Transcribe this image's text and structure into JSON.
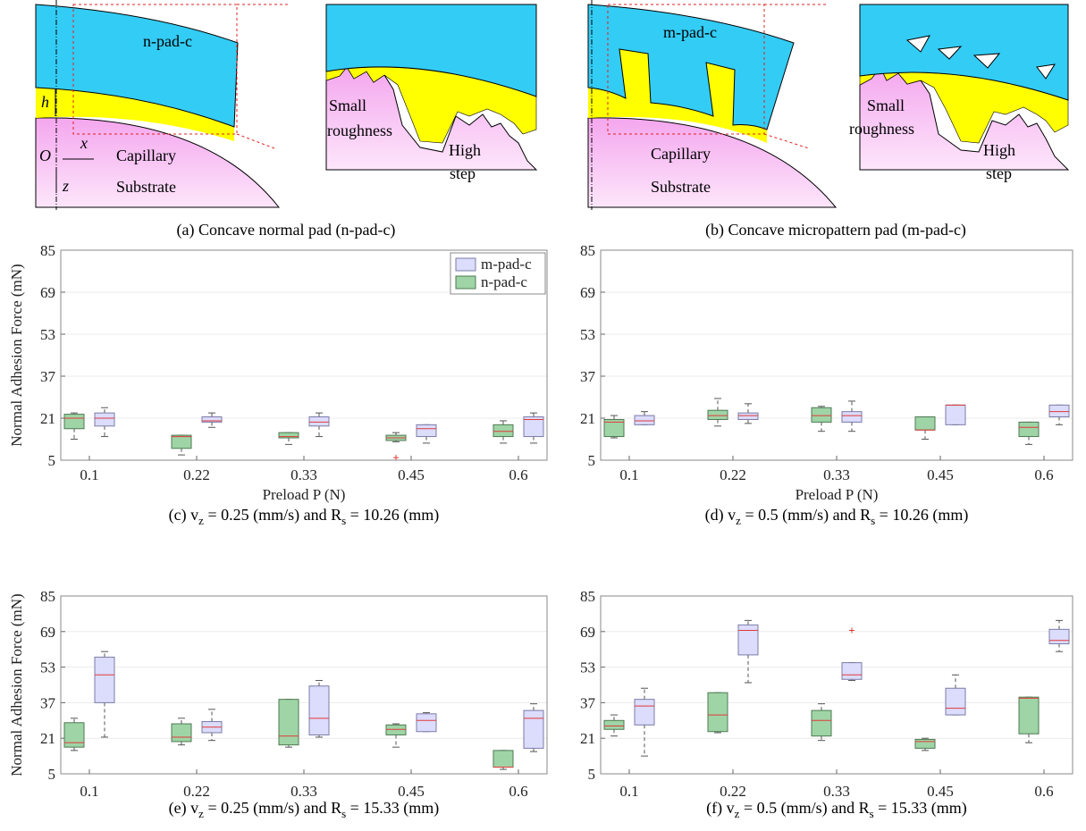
{
  "diagrams": {
    "a": {
      "pad": "n-pad-c",
      "h": "h",
      "origin": "O",
      "x": "x",
      "z": "z",
      "capillary": "Capillary",
      "substrate": "Substrate",
      "small": "Small",
      "roughness": "roughness",
      "high": "High",
      "step": "step",
      "caption": "(a) Concave normal pad (n-pad-c)"
    },
    "b": {
      "pad": "m-pad-c",
      "capillary": "Capillary",
      "substrate": "Substrate",
      "small": "Small",
      "roughness": "roughness",
      "high": "High",
      "step": "step",
      "caption": "(b) Concave micropattern pad  (m-pad-c)"
    }
  },
  "chart_data": [
    {
      "type": "box",
      "title": [
        "(c) v",
        "z",
        " = 0.25 (mm/s) and R",
        "s",
        " = 10.26 (mm)"
      ],
      "xlabel": "Preload P (N)",
      "ylabel": "Normal Adhesion Force (mN)",
      "categories": [
        "0.1",
        "0.22",
        "0.33",
        "0.45",
        "0.6"
      ],
      "ylim": [
        5,
        85
      ],
      "yticks": [
        5,
        21,
        37,
        53,
        69,
        85
      ],
      "grid": true,
      "legend": "upper right",
      "series": [
        {
          "name": "m-pad-c",
          "color": "#dcdcfc",
          "values": [
            {
              "whislo": 14,
              "q1": 18,
              "med": 21,
              "q3": 23,
              "whishi": 25
            },
            {
              "whislo": 17.5,
              "q1": 19.5,
              "med": 20,
              "q3": 21.5,
              "whishi": 23
            },
            {
              "whislo": 14,
              "q1": 18,
              "med": 19.5,
              "q3": 21.5,
              "whishi": 23
            },
            {
              "whislo": 11.5,
              "q1": 14,
              "med": 17,
              "q3": 18.5,
              "whishi": 18.5
            },
            {
              "whislo": 11.5,
              "q1": 14,
              "med": 20.5,
              "q3": 21.5,
              "whishi": 23
            }
          ]
        },
        {
          "name": "n-pad-c",
          "color": "#9fd4a6",
          "values": [
            {
              "whislo": 13,
              "q1": 17,
              "med": 21,
              "q3": 22.5,
              "whishi": 23
            },
            {
              "whislo": 7,
              "q1": 9.5,
              "med": 14,
              "q3": 14.5,
              "whishi": 14.5
            },
            {
              "whislo": 11,
              "q1": 13.5,
              "med": 14,
              "q3": 15.5,
              "whishi": 15.5
            },
            {
              "whislo": 12,
              "q1": 12.5,
              "med": 13.5,
              "q3": 14.5,
              "whishi": 15.5,
              "fliers": [
                6
              ]
            },
            {
              "whislo": 11.5,
              "q1": 14,
              "med": 16,
              "q3": 18.5,
              "whishi": 20
            }
          ]
        }
      ]
    },
    {
      "type": "box",
      "title": [
        "(d) v",
        "z",
        " = 0.5 (mm/s) and R",
        "s",
        " = 10.26 (mm)"
      ],
      "xlabel": "Preload P (N)",
      "categories": [
        "0.1",
        "0.22",
        "0.33",
        "0.45",
        "0.6"
      ],
      "ylim": [
        5,
        85
      ],
      "yticks": [
        5,
        21,
        37,
        53,
        69,
        85
      ],
      "grid": true,
      "series": [
        {
          "name": "m-pad-c",
          "color": "#dcdcfc",
          "values": [
            {
              "whislo": 18.5,
              "q1": 18.5,
              "med": 20,
              "q3": 22,
              "whishi": 23.5
            },
            {
              "whislo": 19,
              "q1": 20.5,
              "med": 22,
              "q3": 23,
              "whishi": 26.5
            },
            {
              "whislo": 16,
              "q1": 19.5,
              "med": 22,
              "q3": 23.5,
              "whishi": 27.5
            },
            {
              "whislo": 18.5,
              "q1": 18.5,
              "med": 26,
              "q3": 26,
              "whishi": 26
            },
            {
              "whislo": 18.5,
              "q1": 21.5,
              "med": 23.5,
              "q3": 26,
              "whishi": 26
            }
          ]
        },
        {
          "name": "n-pad-c",
          "color": "#9fd4a6",
          "values": [
            {
              "whislo": 13.5,
              "q1": 14,
              "med": 19.5,
              "q3": 20.5,
              "whishi": 22
            },
            {
              "whislo": 18,
              "q1": 20.5,
              "med": 22,
              "q3": 24,
              "whishi": 28.5
            },
            {
              "whislo": 16,
              "q1": 19.5,
              "med": 22,
              "q3": 25,
              "whishi": 25.5
            },
            {
              "whislo": 13,
              "q1": 16.5,
              "med": 16.5,
              "q3": 21.5,
              "whishi": 21.5
            },
            {
              "whislo": 11,
              "q1": 14,
              "med": 17.5,
              "q3": 19.5,
              "whishi": 19.5
            }
          ]
        }
      ]
    },
    {
      "type": "box",
      "title": [
        "(e) v",
        "z",
        " = 0.25 (mm/s) and R",
        "s",
        " = 15.33 (mm)"
      ],
      "ylabel": "Normal Adhesion Force (mN)",
      "categories": [
        "0.1",
        "0.22",
        "0.33",
        "0.45",
        "0.6"
      ],
      "ylim": [
        5,
        85
      ],
      "yticks": [
        5,
        21,
        37,
        53,
        69,
        85
      ],
      "grid": true,
      "series": [
        {
          "name": "m-pad-c",
          "color": "#dcdcfc",
          "values": [
            {
              "whislo": 21.5,
              "q1": 37,
              "med": 49.5,
              "q3": 57.5,
              "whishi": 60
            },
            {
              "whislo": 20,
              "q1": 23.5,
              "med": 26,
              "q3": 28.5,
              "whishi": 34
            },
            {
              "whislo": 21.5,
              "q1": 22.5,
              "med": 30,
              "q3": 44.5,
              "whishi": 47
            },
            {
              "whislo": 24,
              "q1": 24,
              "med": 29,
              "q3": 32,
              "whishi": 32.5
            },
            {
              "whislo": 15,
              "q1": 16.5,
              "med": 30,
              "q3": 33.5,
              "whishi": 36.5
            }
          ]
        },
        {
          "name": "n-pad-c",
          "color": "#9fd4a6",
          "values": [
            {
              "whislo": 15.5,
              "q1": 17,
              "med": 19,
              "q3": 28,
              "whishi": 30
            },
            {
              "whislo": 18,
              "q1": 19.5,
              "med": 21.5,
              "q3": 27.5,
              "whishi": 30
            },
            {
              "whislo": 17,
              "q1": 18,
              "med": 22,
              "q3": 38.5,
              "whishi": 38.5
            },
            {
              "whislo": 17,
              "q1": 22.5,
              "med": 25,
              "q3": 27,
              "whishi": 27.5
            },
            {
              "whislo": 7,
              "q1": 8,
              "med": 8,
              "q3": 15.5,
              "whishi": 15.5
            }
          ]
        }
      ]
    },
    {
      "type": "box",
      "title": [
        "(f) v",
        "z",
        " = 0.5 (mm/s) and R",
        "s",
        " = 15.33 (mm)"
      ],
      "categories": [
        "0.1",
        "0.22",
        "0.33",
        "0.45",
        "0.6"
      ],
      "ylim": [
        5,
        85
      ],
      "yticks": [
        5,
        21,
        37,
        53,
        69,
        85
      ],
      "grid": true,
      "series": [
        {
          "name": "m-pad-c",
          "color": "#dcdcfc",
          "values": [
            {
              "whislo": 13,
              "q1": 27,
              "med": 35.5,
              "q3": 38.5,
              "whishi": 43.5
            },
            {
              "whislo": 46,
              "q1": 58.5,
              "med": 69.5,
              "q3": 72,
              "whishi": 74
            },
            {
              "whislo": 47,
              "q1": 47.5,
              "med": 49.5,
              "q3": 55,
              "whishi": 55,
              "fliers": [
                69.5
              ]
            },
            {
              "whislo": 31.5,
              "q1": 31.5,
              "med": 34.5,
              "q3": 43.5,
              "whishi": 49.5
            },
            {
              "whislo": 60,
              "q1": 63.5,
              "med": 65,
              "q3": 70,
              "whishi": 74
            }
          ]
        },
        {
          "name": "n-pad-c",
          "color": "#9fd4a6",
          "values": [
            {
              "whislo": 22,
              "q1": 25,
              "med": 26.5,
              "q3": 29,
              "whishi": 31.5
            },
            {
              "whislo": 23.5,
              "q1": 24,
              "med": 31.5,
              "q3": 41.5,
              "whishi": 41.5
            },
            {
              "whislo": 20,
              "q1": 22,
              "med": 29,
              "q3": 33.5,
              "whishi": 36.5
            },
            {
              "whislo": 15.5,
              "q1": 16.5,
              "med": 19.5,
              "q3": 20.5,
              "whishi": 21
            },
            {
              "whislo": 19,
              "q1": 23,
              "med": 39,
              "q3": 39.5,
              "whishi": 39.5
            }
          ]
        }
      ]
    }
  ]
}
